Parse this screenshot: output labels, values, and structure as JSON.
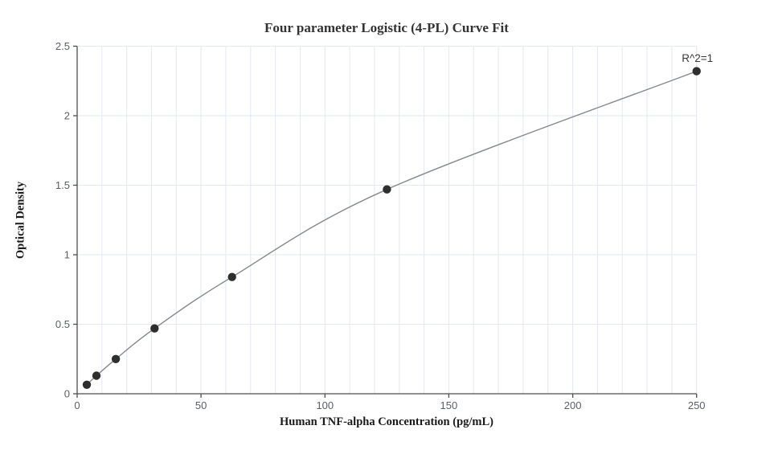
{
  "page": {
    "background": "#ffffff"
  },
  "chart_data": {
    "type": "scatter",
    "title": "Four parameter Logistic (4-PL) Curve Fit",
    "xlabel": "Human TNF-alpha Concentration (pg/mL)",
    "ylabel": "Optical Density",
    "annotation": "R^2=1",
    "series": [
      {
        "name": "standard-curve",
        "x": [
          3.9,
          7.8,
          15.6,
          31.25,
          62.5,
          125,
          250
        ],
        "y": [
          0.065,
          0.13,
          0.25,
          0.47,
          0.84,
          1.47,
          2.32
        ]
      }
    ],
    "fit_type": "4-PL smooth curve through points",
    "xlim": [
      0,
      250
    ],
    "ylim": [
      0,
      2.5
    ],
    "x_major_ticks": [
      0,
      50,
      100,
      150,
      200,
      250
    ],
    "x_minor_grid_step": 10,
    "y_ticks": [
      0,
      0.5,
      1,
      1.5,
      2,
      2.5
    ],
    "grid": true,
    "legend_position": "none",
    "colors": {
      "background": "#ffffff",
      "axis": "#4d4d4d",
      "grid": "#e2e8f4",
      "curve": "#85888c",
      "point": "#2e2e2e",
      "tick_label": "#5a5f66",
      "title": "#333333",
      "axis_label": "#1a1a1a",
      "annotation": "#3a3a3a"
    }
  }
}
